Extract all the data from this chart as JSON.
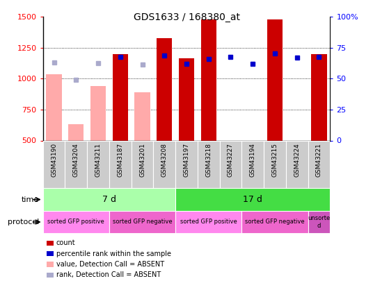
{
  "title": "GDS1633 / 168380_at",
  "samples": [
    "GSM43190",
    "GSM43204",
    "GSM43211",
    "GSM43187",
    "GSM43201",
    "GSM43208",
    "GSM43197",
    "GSM43218",
    "GSM43227",
    "GSM43194",
    "GSM43215",
    "GSM43224",
    "GSM43221"
  ],
  "count_values": [
    null,
    null,
    null,
    1200,
    null,
    1330,
    1165,
    1480,
    null,
    null,
    1480,
    null,
    1200
  ],
  "count_absent": [
    1035,
    630,
    940,
    null,
    890,
    null,
    null,
    null,
    null,
    null,
    null,
    null,
    null
  ],
  "percentile_rank": [
    null,
    null,
    null,
    1175,
    null,
    1185,
    1120,
    1160,
    1175,
    1120,
    1205,
    1170,
    1175
  ],
  "percentile_rank_absent": [
    1130,
    990,
    1125,
    null,
    1115,
    null,
    null,
    null,
    null,
    null,
    null,
    null,
    null
  ],
  "ylim_left": [
    500,
    1500
  ],
  "ylim_right": [
    0,
    100
  ],
  "yticks_left": [
    500,
    750,
    1000,
    1250,
    1500
  ],
  "yticks_right": [
    0,
    25,
    50,
    75,
    100
  ],
  "bar_color_present": "#cc0000",
  "bar_color_absent": "#ffaaaa",
  "dot_color_present": "#0000cc",
  "dot_color_absent": "#aaaacc",
  "bar_bottom": 500,
  "time_7d_color": "#aaffaa",
  "time_17d_color": "#44dd44",
  "protocol_pink1": "#ff88ee",
  "protocol_pink2": "#ee66cc",
  "protocol_purple": "#cc55bb",
  "xticklabel_bg": "#cccccc",
  "legend_items": [
    {
      "color": "#cc0000",
      "label": "count"
    },
    {
      "color": "#0000cc",
      "label": "percentile rank within the sample"
    },
    {
      "color": "#ffaaaa",
      "label": "value, Detection Call = ABSENT"
    },
    {
      "color": "#aaaacc",
      "label": "rank, Detection Call = ABSENT"
    }
  ]
}
